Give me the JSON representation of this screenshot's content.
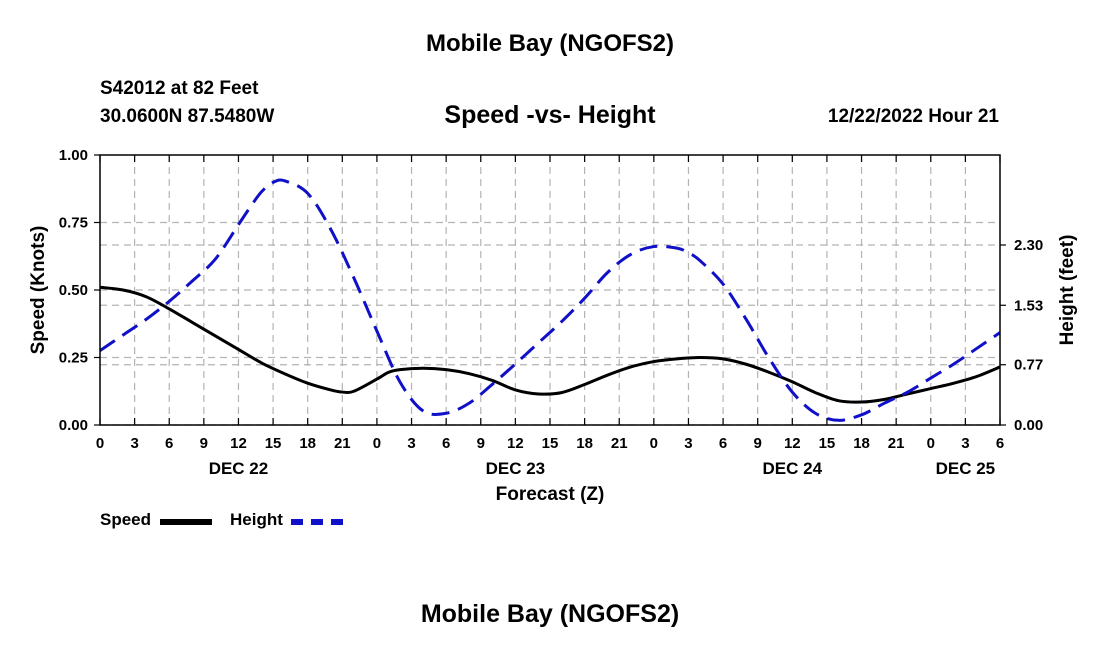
{
  "page": {
    "title_top": "Mobile Bay (NGOFS2)",
    "title_bottom": "Mobile Bay (NGOFS2)",
    "station": "S42012 at 82 Feet",
    "coords": "30.0600N  87.5480W",
    "chart_title": "Speed -vs- Height",
    "datetime": "12/22/2022 Hour 21"
  },
  "legend": {
    "speed_label": "Speed",
    "height_label": "Height"
  },
  "colors": {
    "speed": "#000000",
    "height": "#1010c8",
    "grid": "#b4b4b4"
  },
  "chart_data": {
    "type": "line",
    "title": "Speed -vs- Height",
    "xlabel": "Forecast (Z)",
    "ylabel": "Speed (Knots)",
    "y2label": "Height (feet)",
    "xlim": [
      0,
      78
    ],
    "ylim": [
      0,
      1.0
    ],
    "y2lim": [
      0,
      3.45
    ],
    "grid": true,
    "x_tick_labels": [
      "0",
      "3",
      "6",
      "9",
      "12",
      "15",
      "18",
      "21",
      "0",
      "3",
      "6",
      "9",
      "12",
      "15",
      "18",
      "21",
      "0",
      "3",
      "6",
      "9",
      "12",
      "15",
      "18",
      "21",
      "0",
      "3",
      "6"
    ],
    "day_labels": [
      {
        "label": "DEC 22",
        "x": 12
      },
      {
        "label": "DEC 23",
        "x": 36
      },
      {
        "label": "DEC 24",
        "x": 60
      },
      {
        "label": "DEC 25",
        "x": 75
      }
    ],
    "y_ticks": [
      "0.00",
      "0.25",
      "0.50",
      "0.75",
      "1.00"
    ],
    "y_tick_values": [
      0,
      0.25,
      0.5,
      0.75,
      1.0
    ],
    "y2_ticks": [
      "0.00",
      "0.77",
      "1.53",
      "2.30"
    ],
    "y2_tick_values": [
      0.0,
      0.77,
      1.53,
      2.3
    ],
    "series": [
      {
        "name": "Speed",
        "axis": "left",
        "style": "solid",
        "x": [
          0,
          2,
          4,
          6,
          8,
          10,
          12,
          14,
          16,
          18,
          20,
          21,
          22,
          24,
          25,
          26,
          28,
          30,
          32,
          34,
          36,
          38,
          40,
          42,
          44,
          46,
          48,
          50,
          52,
          54,
          56,
          58,
          60,
          62,
          64,
          66,
          68,
          70,
          72,
          74,
          76,
          78
        ],
        "y": [
          0.51,
          0.5,
          0.475,
          0.43,
          0.38,
          0.33,
          0.28,
          0.23,
          0.19,
          0.155,
          0.13,
          0.122,
          0.125,
          0.17,
          0.195,
          0.205,
          0.21,
          0.205,
          0.19,
          0.165,
          0.13,
          0.115,
          0.12,
          0.15,
          0.185,
          0.215,
          0.235,
          0.245,
          0.25,
          0.245,
          0.225,
          0.195,
          0.16,
          0.12,
          0.09,
          0.085,
          0.095,
          0.115,
          0.135,
          0.155,
          0.18,
          0.215
        ]
      },
      {
        "name": "Height",
        "axis": "right",
        "style": "dashed",
        "x": [
          0,
          2,
          4,
          6,
          8,
          10,
          12,
          13,
          14,
          15,
          16,
          18,
          20,
          22,
          24,
          26,
          28,
          30,
          32,
          34,
          36,
          38,
          40,
          42,
          44,
          46,
          48,
          50,
          51,
          52,
          54,
          56,
          58,
          60,
          62,
          64,
          66,
          68,
          70,
          72,
          74,
          76,
          78
        ],
        "y": [
          0.95,
          1.15,
          1.35,
          1.58,
          1.84,
          2.12,
          2.56,
          2.78,
          2.98,
          3.1,
          3.12,
          2.96,
          2.5,
          1.88,
          1.2,
          0.55,
          0.18,
          0.15,
          0.28,
          0.52,
          0.78,
          1.05,
          1.32,
          1.62,
          1.95,
          2.18,
          2.28,
          2.26,
          2.2,
          2.1,
          1.8,
          1.35,
          0.85,
          0.42,
          0.15,
          0.06,
          0.13,
          0.28,
          0.42,
          0.6,
          0.78,
          0.98,
          1.18
        ]
      }
    ]
  }
}
